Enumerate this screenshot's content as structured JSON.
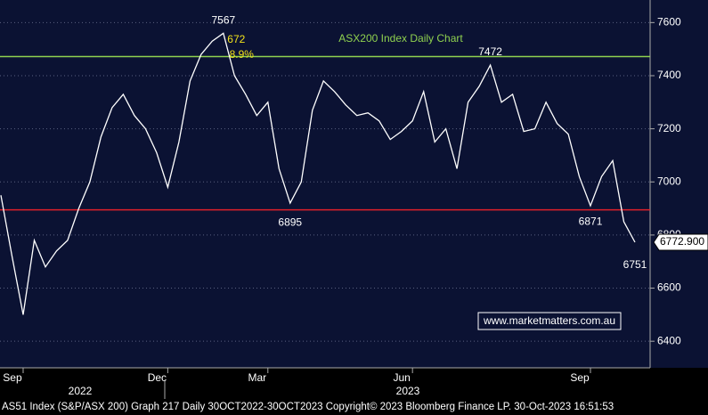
{
  "chart_data": {
    "type": "line",
    "title": "ASX200 Index Daily Chart",
    "categories": [
      null,
      null,
      "Sep",
      null,
      null,
      null,
      null,
      null,
      null,
      null,
      null,
      null,
      null,
      null,
      null,
      "Dec",
      null,
      null,
      null,
      null,
      null,
      null,
      null,
      null,
      "Mar",
      null,
      null,
      null,
      null,
      null,
      null,
      null,
      null,
      null,
      null,
      null,
      null,
      "Jun",
      null,
      null,
      null,
      null,
      null,
      null,
      null,
      null,
      null,
      null,
      null,
      null,
      null,
      null,
      null,
      "Sep",
      null,
      null,
      null,
      null
    ],
    "series": [
      {
        "name": "AS51 Index",
        "color": "#ffffff",
        "values": [
          6950,
          6720,
          6500,
          6780,
          6680,
          6740,
          6780,
          6900,
          7000,
          7170,
          7280,
          7330,
          7250,
          7200,
          7110,
          6980,
          7150,
          7380,
          7480,
          7530,
          7560,
          7400,
          7330,
          7250,
          7300,
          7050,
          6920,
          7000,
          7270,
          7380,
          7340,
          7290,
          7250,
          7260,
          7230,
          7160,
          7190,
          7230,
          7340,
          7150,
          7200,
          7050,
          7300,
          7360,
          7440,
          7300,
          7330,
          7190,
          7200,
          7300,
          7220,
          7180,
          7020,
          6910,
          7020,
          7080,
          6850,
          6772.9
        ]
      }
    ],
    "years": [
      "2022",
      "2023"
    ],
    "ylim": [
      6300,
      7685
    ],
    "yticks": [
      6400,
      6600,
      6800,
      7000,
      7200,
      7400,
      7600
    ],
    "grid": true,
    "hlines": [
      {
        "value": 7472,
        "color": "#8fd14f"
      },
      {
        "value": 6895,
        "color": "#e0202a"
      }
    ],
    "last_value": 6772.9,
    "last_label": "6772.900",
    "annotations": [
      {
        "text": "7567",
        "at": 20,
        "color": "#ffffff"
      },
      {
        "text": "7472",
        "at": 44,
        "color": "#ffffff"
      },
      {
        "text": "672",
        "at": 21,
        "color": "#f2e21b"
      },
      {
        "text": "8.9%",
        "at": 21,
        "color": "#f2e21b"
      },
      {
        "text": "6895",
        "at": 26,
        "color": "#ffffff"
      },
      {
        "text": "6871",
        "at": 53,
        "color": "#ffffff"
      },
      {
        "text": "6751",
        "at": 57,
        "color": "#ffffff"
      }
    ],
    "watermark": "www.marketmatters.com.au",
    "footer": "AS51 Index (S&P/ASX 200) Graph 217  Daily 30OCT2022-30OCT2023  Copyright© 2023 Bloomberg Finance LP.  30-Oct-2023 16:51:53"
  }
}
